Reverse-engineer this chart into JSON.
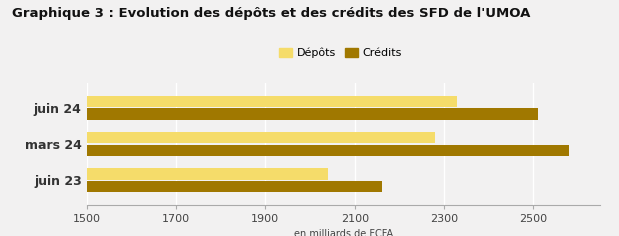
{
  "title": "Graphique 3 : Evolution des dépôts et des crédits des SFD de l'UMOA",
  "categories": [
    "juin 23",
    "mars 24",
    "juin 24"
  ],
  "depots": [
    2040,
    2280,
    2330
  ],
  "credits": [
    2160,
    2580,
    2510
  ],
  "color_depots": "#F5DC6A",
  "color_credits": "#A07800",
  "xlim_min": 1500,
  "xlim_max": 2650,
  "xticks": [
    1500,
    1700,
    1900,
    2100,
    2300,
    2500
  ],
  "xlabel": "en milliards de FCFA",
  "legend_depots": "Dépôts",
  "legend_credits": "Crédits",
  "background_color": "#F2F1F1",
  "bar_height": 0.32,
  "title_fontsize": 9.5,
  "axis_fontsize": 8,
  "legend_fontsize": 8,
  "label_fontsize": 7,
  "ylabel_fontsize": 9
}
